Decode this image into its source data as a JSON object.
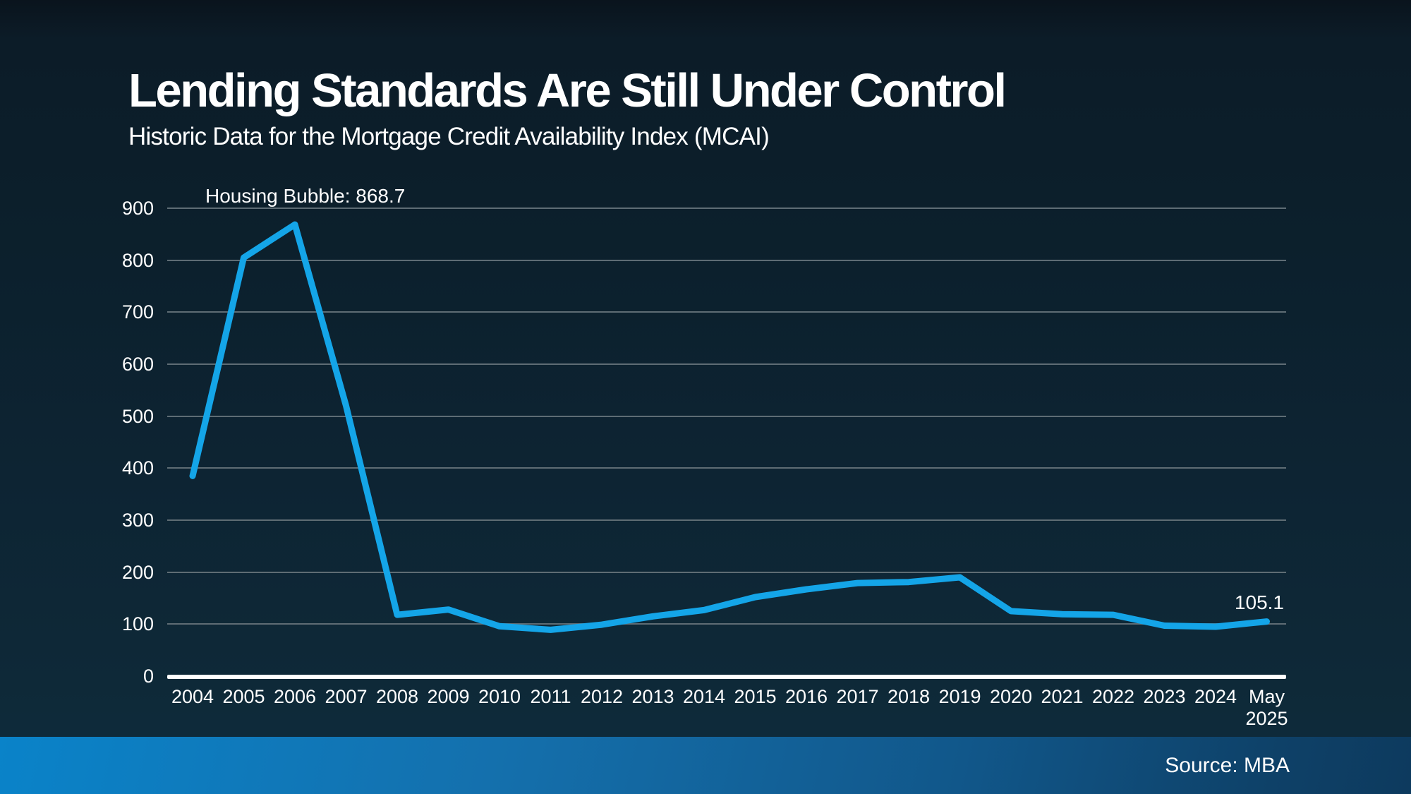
{
  "page": {
    "title": "Lending Standards Are Still Under Control",
    "subtitle": "Historic Data for the Mortgage Credit Availability Index (MCAI)"
  },
  "annotations": {
    "peak_label": "Housing Bubble: 868.7",
    "latest_label": "105.1"
  },
  "footer": {
    "source": "Source: MBA"
  },
  "colors": {
    "line": "#14a5e8",
    "gridline": "#5e6c74",
    "axis": "#ffffff",
    "background_top": "#0a141d",
    "background_bottom": "#0f2c3d",
    "footer_bar_left": "#0a83c9",
    "footer_bar_right": "#0d3a5e"
  },
  "chart_data": {
    "type": "line",
    "title": "Lending Standards Are Still Under Control",
    "subtitle": "Historic Data for the Mortgage Credit Availability Index (MCAI)",
    "series_name": "Mortgage Credit Availability Index",
    "categories": [
      "2004",
      "2005",
      "2006",
      "2007",
      "2008",
      "2009",
      "2010",
      "2011",
      "2012",
      "2013",
      "2014",
      "2015",
      "2016",
      "2017",
      "2018",
      "2019",
      "2020",
      "2021",
      "2022",
      "2023",
      "2024",
      "May 2025"
    ],
    "values": [
      385,
      805,
      868.7,
      520,
      118,
      128,
      96,
      89,
      99,
      115,
      127,
      152,
      167,
      179,
      181,
      190,
      125,
      119,
      118,
      97,
      95,
      105.1
    ],
    "xlabel": "",
    "ylabel": "",
    "ylim": [
      0,
      900
    ],
    "yticks": [
      0,
      100,
      200,
      300,
      400,
      500,
      600,
      700,
      800,
      900
    ],
    "grid": "horizontal",
    "legend": "none",
    "line_color": "#14a5e8",
    "annotations": [
      {
        "text": "Housing Bubble: 868.7",
        "category": "2006",
        "value": 868.7
      },
      {
        "text": "105.1",
        "category": "May 2025",
        "value": 105.1
      }
    ],
    "source": "Source: MBA"
  }
}
